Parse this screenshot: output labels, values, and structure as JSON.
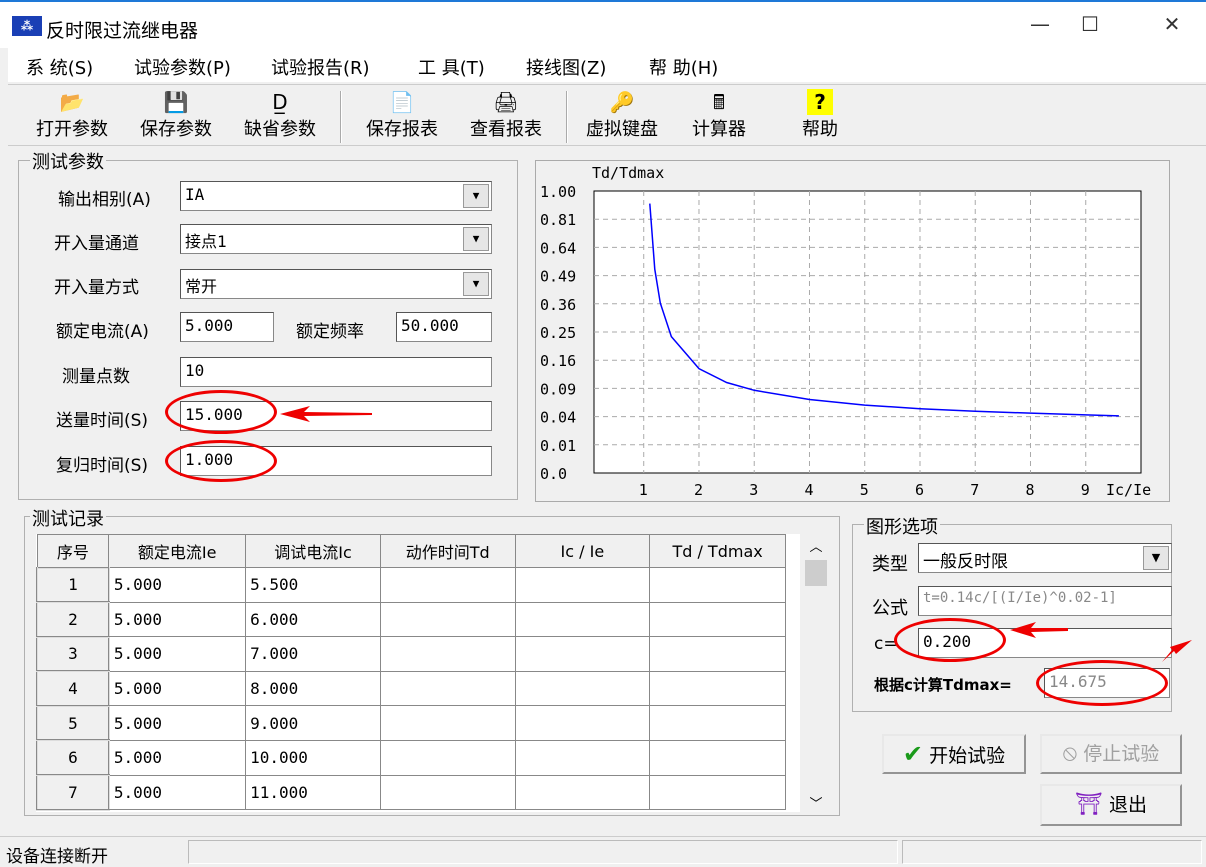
{
  "window": {
    "title": "反时限过流继电器",
    "icon": "app-icon",
    "minimize": "—",
    "maximize": "☐",
    "close": "✕"
  },
  "menu": [
    "系 统(S)",
    "试验参数(P)",
    "试验报告(R)",
    "工 具(T)",
    "接线图(Z)",
    "帮 助(H)"
  ],
  "toolbar": [
    {
      "label": "打开参数",
      "icon": "folder-open-icon",
      "glyph": "📂"
    },
    {
      "label": "保存参数",
      "icon": "floppy-icon",
      "glyph": "💾"
    },
    {
      "label": "缺省参数",
      "icon": "default-d-icon",
      "glyph": "D̲"
    },
    {
      "label": "保存报表",
      "icon": "excel-report-icon",
      "glyph": "📄"
    },
    {
      "label": "查看报表",
      "icon": "printer-icon",
      "glyph": "🖨"
    },
    {
      "label": "虚拟键盘",
      "icon": "key-icon",
      "glyph": "🔑"
    },
    {
      "label": "计算器",
      "icon": "calculator-icon",
      "glyph": "🖩"
    },
    {
      "label": "帮助",
      "icon": "help-icon",
      "glyph": "?"
    }
  ],
  "params": {
    "title": "测试参数",
    "phase_label": "输出相别(A)",
    "phase": "IA",
    "channel_label": "开入量通道",
    "channel": "接点1",
    "mode_label": "开入量方式",
    "mode": "常开",
    "rated_current_label": "额定电流(A)",
    "rated_current": "5.000",
    "rated_freq_label": "额定频率",
    "rated_freq": "50.000",
    "points_label": "测量点数",
    "points": "10",
    "send_time_label": "送量时间(S)",
    "send_time": "15.000",
    "reset_time_label": "复归时间(S)",
    "reset_time": "1.000"
  },
  "chart_data": {
    "type": "line",
    "ylabel": "Td/Tdmax",
    "xlabel": "Ic/Ie",
    "xlim": [
      0.1,
      10
    ],
    "ylim": [
      0,
      1
    ],
    "yscale": "sqrt",
    "grid": true,
    "xticks": [
      "1",
      "2",
      "3",
      "4",
      "5",
      "6",
      "7",
      "8",
      "9"
    ],
    "yticks": [
      "0.0",
      "0.01",
      "0.04",
      "0.09",
      "0.16",
      "0.25",
      "0.36",
      "0.49",
      "0.64",
      "0.81",
      "1.00"
    ],
    "series": [
      {
        "color": "#0000ff",
        "x": [
          1.11,
          1.2,
          1.3,
          1.5,
          2,
          2.5,
          3,
          4,
          5,
          6,
          7,
          8,
          9,
          9.6
        ],
        "y": [
          0.913,
          0.522,
          0.363,
          0.234,
          0.137,
          0.103,
          0.086,
          0.068,
          0.058,
          0.052,
          0.048,
          0.045,
          0.0425,
          0.041
        ]
      }
    ]
  },
  "records": {
    "title": "测试记录",
    "columns": [
      "序号",
      "额定电流Ie",
      "调试电流Ic",
      "动作时间Td",
      "Ic / Ie",
      "Td / Tdmax"
    ],
    "rows": [
      [
        "1",
        "5.000",
        "5.500",
        "",
        "",
        ""
      ],
      [
        "2",
        "5.000",
        "6.000",
        "",
        "",
        ""
      ],
      [
        "3",
        "5.000",
        "7.000",
        "",
        "",
        ""
      ],
      [
        "4",
        "5.000",
        "8.000",
        "",
        "",
        ""
      ],
      [
        "5",
        "5.000",
        "9.000",
        "",
        "",
        ""
      ],
      [
        "6",
        "5.000",
        "10.000",
        "",
        "",
        ""
      ],
      [
        "7",
        "5.000",
        "11.000",
        "",
        "",
        ""
      ]
    ]
  },
  "graph_options": {
    "title": "图形选项",
    "type_label": "类型",
    "type": "一般反时限",
    "formula_label": "公式",
    "formula": "t=0.14c/[(I/Ie)^0.02-1]",
    "c_label": "c=",
    "c": "0.200",
    "tdmax_label": "根据c计算Tdmax=",
    "tdmax": "14.675"
  },
  "buttons": {
    "start": "开始试验",
    "stop": "停止试验",
    "exit": "退出"
  },
  "status": {
    "text": "设备连接断开"
  },
  "colors": {
    "annotation": "#e00000",
    "curve": "#0000ff"
  }
}
